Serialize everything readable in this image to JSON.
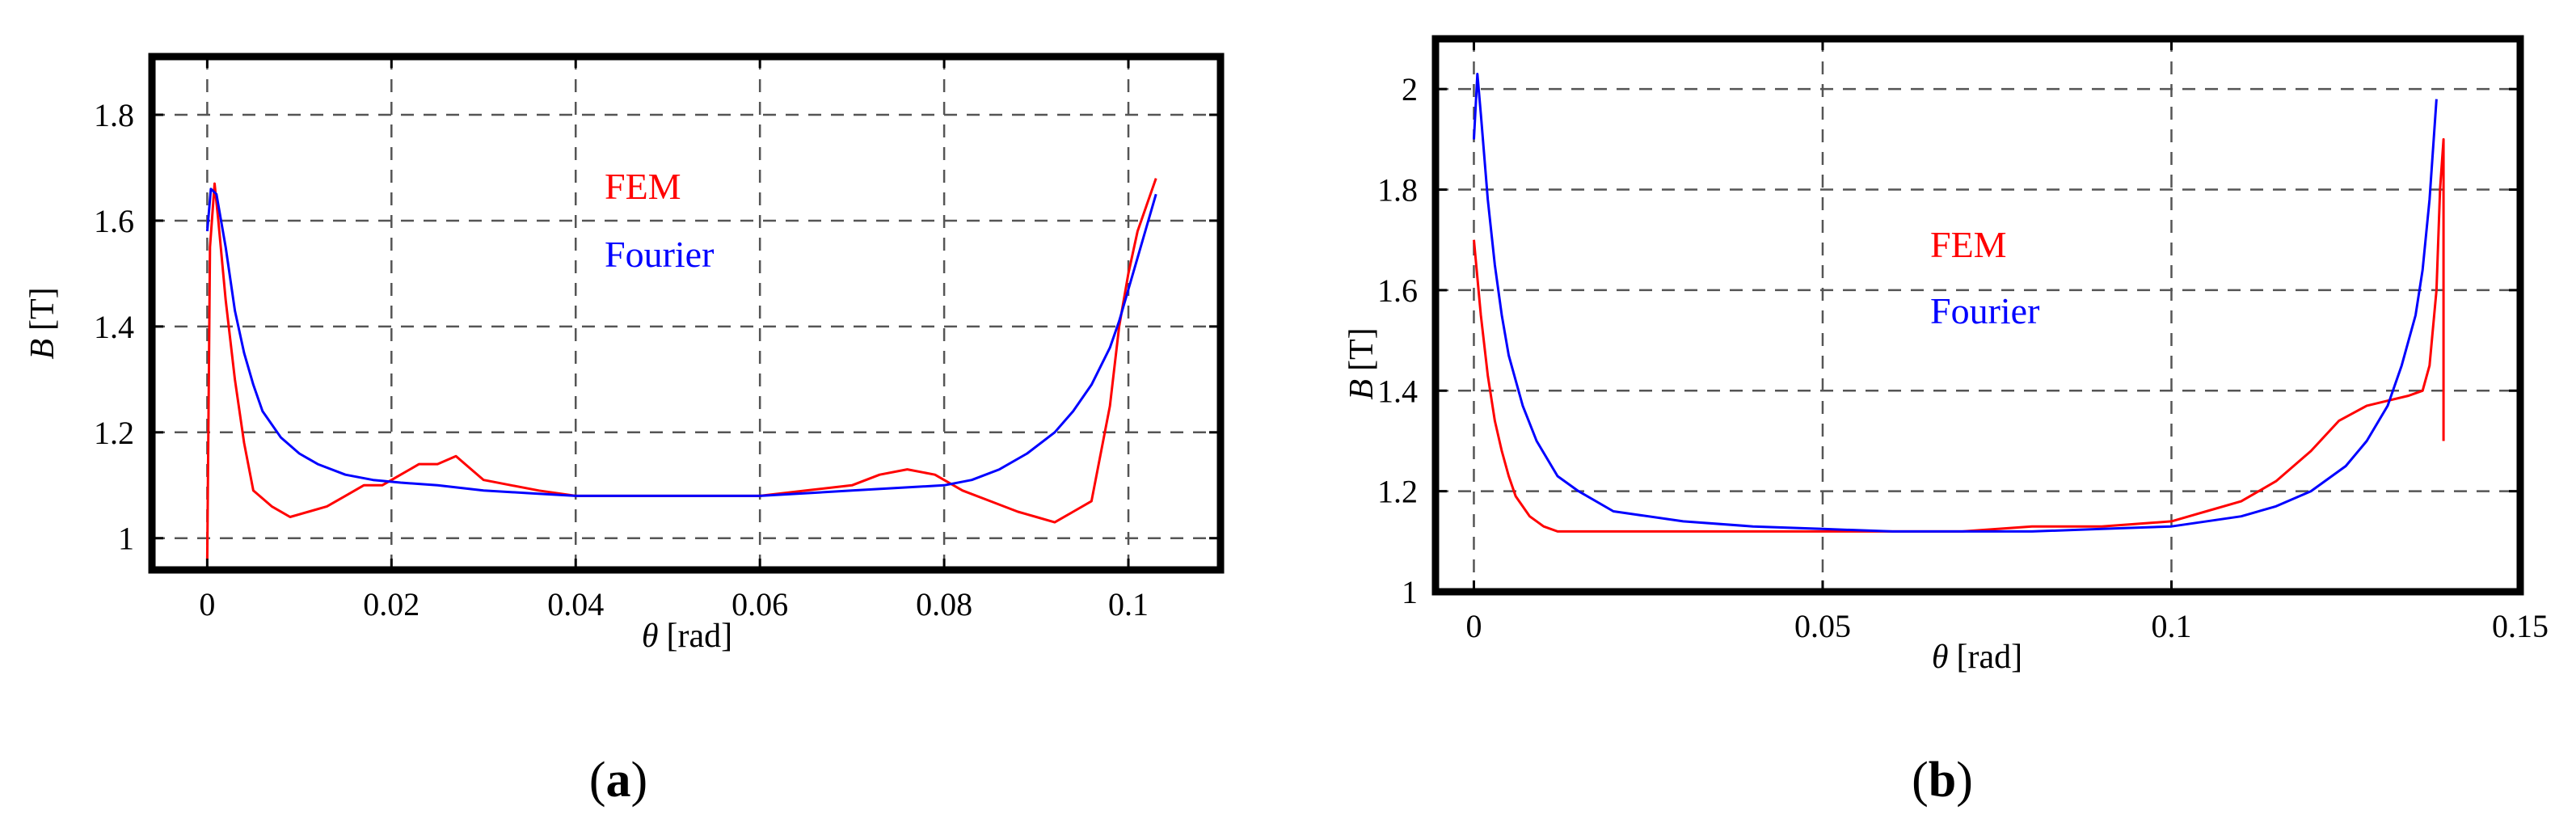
{
  "panels": [
    {
      "id": "a",
      "prefix": "(",
      "letter": "a",
      "suffix": ")"
    },
    {
      "id": "b",
      "prefix": "(",
      "letter": "b",
      "suffix": ")"
    }
  ],
  "colors": {
    "fem": "#ff0000",
    "fourier": "#0000ff",
    "grid": "#555555"
  },
  "chart_data": [
    {
      "type": "line",
      "title": "",
      "xlabel": {
        "symbol": "θ",
        "unit": "[rad]"
      },
      "ylabel": {
        "symbol": "B",
        "unit": "[T]"
      },
      "xlim": [
        -0.006,
        0.11
      ],
      "ylim": [
        0.94,
        1.91
      ],
      "xticks": [
        0,
        0.02,
        0.04,
        0.06,
        0.08,
        0.1
      ],
      "xtick_labels": [
        "0",
        "0.02",
        "0.04",
        "0.06",
        "0.08",
        "0.1"
      ],
      "yticks": [
        1,
        1.2,
        1.4,
        1.6,
        1.8
      ],
      "ytick_labels": [
        "1",
        "1.2",
        "1.4",
        "1.6",
        "1.8"
      ],
      "grid": true,
      "legend": [
        {
          "label": "FEM",
          "color": "#ff0000",
          "position": "upper-center"
        },
        {
          "label": "Fourier",
          "color": "#0000ff",
          "position": "upper-center"
        }
      ],
      "series": [
        {
          "name": "FEM",
          "color": "#ff0000",
          "x": [
            0,
            0.0003,
            0.0008,
            0.0012,
            0.002,
            0.003,
            0.004,
            0.005,
            0.007,
            0.009,
            0.011,
            0.013,
            0.015,
            0.017,
            0.019,
            0.021,
            0.023,
            0.025,
            0.027,
            0.028,
            0.03,
            0.033,
            0.036,
            0.04,
            0.045,
            0.05,
            0.055,
            0.06,
            0.065,
            0.07,
            0.073,
            0.076,
            0.079,
            0.082,
            0.085,
            0.088,
            0.09,
            0.092,
            0.094,
            0.096,
            0.098,
            0.099,
            0.1,
            0.101,
            0.102,
            0.103
          ],
          "values": [
            0.96,
            1.55,
            1.67,
            1.6,
            1.45,
            1.3,
            1.18,
            1.09,
            1.06,
            1.04,
            1.05,
            1.06,
            1.08,
            1.1,
            1.1,
            1.12,
            1.14,
            1.14,
            1.155,
            1.14,
            1.11,
            1.1,
            1.09,
            1.08,
            1.08,
            1.08,
            1.08,
            1.08,
            1.09,
            1.1,
            1.12,
            1.13,
            1.12,
            1.09,
            1.07,
            1.05,
            1.04,
            1.03,
            1.05,
            1.07,
            1.25,
            1.4,
            1.5,
            1.58,
            1.63,
            1.68
          ]
        },
        {
          "name": "Fourier",
          "color": "#0000ff",
          "x": [
            0,
            0.0004,
            0.001,
            0.002,
            0.003,
            0.004,
            0.005,
            0.006,
            0.008,
            0.01,
            0.012,
            0.015,
            0.018,
            0.021,
            0.025,
            0.03,
            0.035,
            0.04,
            0.045,
            0.05,
            0.055,
            0.06,
            0.065,
            0.07,
            0.075,
            0.08,
            0.083,
            0.086,
            0.089,
            0.092,
            0.094,
            0.096,
            0.098,
            0.099,
            0.1,
            0.101,
            0.102,
            0.103
          ],
          "values": [
            1.58,
            1.66,
            1.65,
            1.55,
            1.43,
            1.35,
            1.29,
            1.24,
            1.19,
            1.16,
            1.14,
            1.12,
            1.11,
            1.105,
            1.1,
            1.09,
            1.085,
            1.08,
            1.08,
            1.08,
            1.08,
            1.08,
            1.085,
            1.09,
            1.095,
            1.1,
            1.11,
            1.13,
            1.16,
            1.2,
            1.24,
            1.29,
            1.36,
            1.41,
            1.47,
            1.53,
            1.59,
            1.65
          ]
        }
      ]
    },
    {
      "type": "line",
      "title": "",
      "xlabel": {
        "symbol": "θ",
        "unit": "[rad]"
      },
      "ylabel": {
        "symbol": "B",
        "unit": "[T]"
      },
      "xlim": [
        -0.0055,
        0.15
      ],
      "ylim": [
        1.0,
        2.1
      ],
      "xticks": [
        0,
        0.05,
        0.1,
        0.15
      ],
      "xtick_labels": [
        "0",
        "0.05",
        "0.1",
        "0.15"
      ],
      "yticks": [
        1,
        1.2,
        1.4,
        1.6,
        1.8,
        2
      ],
      "ytick_labels": [
        "1",
        "1.2",
        "1.4",
        "1.6",
        "1.8",
        "2"
      ],
      "grid": true,
      "legend": [
        {
          "label": "FEM",
          "color": "#ff0000",
          "position": "center"
        },
        {
          "label": "Fourier",
          "color": "#0000ff",
          "position": "center"
        }
      ],
      "series": [
        {
          "name": "FEM",
          "color": "#ff0000",
          "x": [
            0,
            0.001,
            0.002,
            0.003,
            0.004,
            0.005,
            0.006,
            0.008,
            0.01,
            0.012,
            0.015,
            0.02,
            0.03,
            0.05,
            0.07,
            0.08,
            0.09,
            0.1,
            0.105,
            0.11,
            0.115,
            0.12,
            0.124,
            0.128,
            0.131,
            0.134,
            0.136,
            0.137,
            0.138,
            0.1385,
            0.139,
            0.139
          ],
          "values": [
            1.7,
            1.55,
            1.43,
            1.34,
            1.28,
            1.23,
            1.19,
            1.15,
            1.13,
            1.12,
            1.12,
            1.12,
            1.12,
            1.12,
            1.12,
            1.13,
            1.13,
            1.14,
            1.16,
            1.18,
            1.22,
            1.28,
            1.34,
            1.37,
            1.38,
            1.39,
            1.4,
            1.45,
            1.6,
            1.8,
            1.9,
            1.3
          ]
        },
        {
          "name": "Fourier",
          "color": "#0000ff",
          "x": [
            0,
            0.0005,
            0.001,
            0.002,
            0.003,
            0.004,
            0.005,
            0.007,
            0.009,
            0.012,
            0.015,
            0.02,
            0.03,
            0.04,
            0.05,
            0.06,
            0.07,
            0.08,
            0.09,
            0.1,
            0.11,
            0.115,
            0.12,
            0.125,
            0.128,
            0.131,
            0.133,
            0.135,
            0.136,
            0.137,
            0.138
          ],
          "values": [
            1.9,
            2.03,
            1.95,
            1.78,
            1.65,
            1.55,
            1.47,
            1.37,
            1.3,
            1.23,
            1.2,
            1.16,
            1.14,
            1.13,
            1.125,
            1.12,
            1.12,
            1.12,
            1.125,
            1.13,
            1.15,
            1.17,
            1.2,
            1.25,
            1.3,
            1.37,
            1.45,
            1.55,
            1.64,
            1.78,
            1.98
          ]
        }
      ]
    }
  ]
}
